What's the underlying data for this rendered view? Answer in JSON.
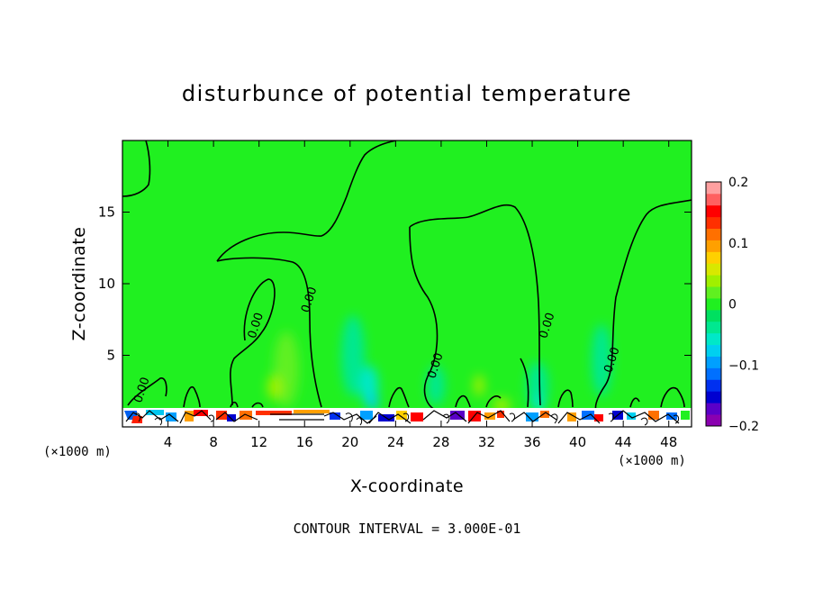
{
  "chart_data": {
    "type": "heatmap",
    "title": "disturbunce of potential temperature",
    "xlabel": "X-coordinate",
    "ylabel": "Z-coordinate",
    "x_unit": "(×1000 m)",
    "footer": "CONTOUR INTERVAL = 3.000E-01",
    "xlim": [
      0,
      50
    ],
    "ylim": [
      0,
      20
    ],
    "x_ticks": [
      4,
      8,
      12,
      16,
      20,
      24,
      28,
      32,
      36,
      40,
      44,
      48
    ],
    "y_ticks": [
      5,
      10,
      15
    ],
    "contour_interval": 0.3,
    "contour_labels": [
      {
        "text": "0.00",
        "x": 2.0,
        "y": 2.5
      },
      {
        "text": "0.00",
        "x": 12.0,
        "y": 7.0
      },
      {
        "text": "0.00",
        "x": 16.7,
        "y": 8.8
      },
      {
        "text": "0.00",
        "x": 27.8,
        "y": 4.2
      },
      {
        "text": "0.00",
        "x": 37.6,
        "y": 7.0
      },
      {
        "text": "0.00",
        "x": 43.3,
        "y": 4.6
      }
    ],
    "colorbar": {
      "min": -0.2,
      "max": 0.2,
      "tick_values": [
        0.2,
        0.1,
        0,
        -0.1,
        -0.2
      ],
      "tick_labels": [
        "0.2",
        "0.1",
        "0",
        "−0.1",
        "−0.2"
      ],
      "colors": [
        "#8a00b0",
        "#5a00c8",
        "#0000d0",
        "#0030f0",
        "#0070ff",
        "#00a0ff",
        "#00d0f0",
        "#00e8c8",
        "#00e890",
        "#00e060",
        "#20f020",
        "#60f020",
        "#a0f000",
        "#d8e800",
        "#ffd000",
        "#ffa000",
        "#ff7000",
        "#ff3000",
        "#ff0000",
        "#ff6060",
        "#ffa0a0"
      ]
    }
  }
}
